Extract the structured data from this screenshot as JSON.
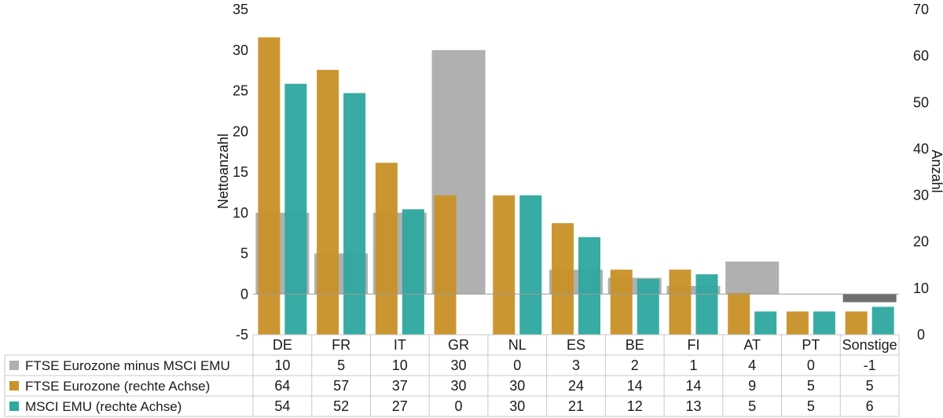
{
  "chart_data": {
    "type": "bar",
    "categories": [
      "DE",
      "FR",
      "IT",
      "GR",
      "NL",
      "ES",
      "BE",
      "FI",
      "AT",
      "PT",
      "Sonstige"
    ],
    "series": [
      {
        "name": "FTSE Eurozone minus MSCI EMU",
        "axis": "left",
        "color": "#b0b0b0",
        "negative_color": "#6e6e6e",
        "values": [
          10,
          5,
          10,
          30,
          0,
          3,
          2,
          1,
          4,
          0,
          -1
        ]
      },
      {
        "name": "FTSE Eurozone (rechte Achse)",
        "axis": "right",
        "color": "#c9922a",
        "values": [
          64,
          57,
          37,
          30,
          30,
          24,
          14,
          14,
          9,
          5,
          5
        ]
      },
      {
        "name": "MSCI EMU (rechte Achse)",
        "axis": "right",
        "color": "#2fa8a0",
        "values": [
          54,
          52,
          27,
          0,
          30,
          21,
          12,
          13,
          5,
          5,
          6
        ]
      }
    ],
    "y_left": {
      "label": "Nettoanzahl",
      "range": [
        -5,
        35
      ],
      "ticks": [
        35,
        30,
        25,
        20,
        15,
        10,
        5,
        0,
        -5
      ]
    },
    "y_right": {
      "label": "Anzahl",
      "range": [
        0,
        70
      ],
      "ticks": [
        70,
        60,
        50,
        40,
        30,
        20,
        10,
        0
      ]
    },
    "grid": false,
    "data_table": true
  }
}
